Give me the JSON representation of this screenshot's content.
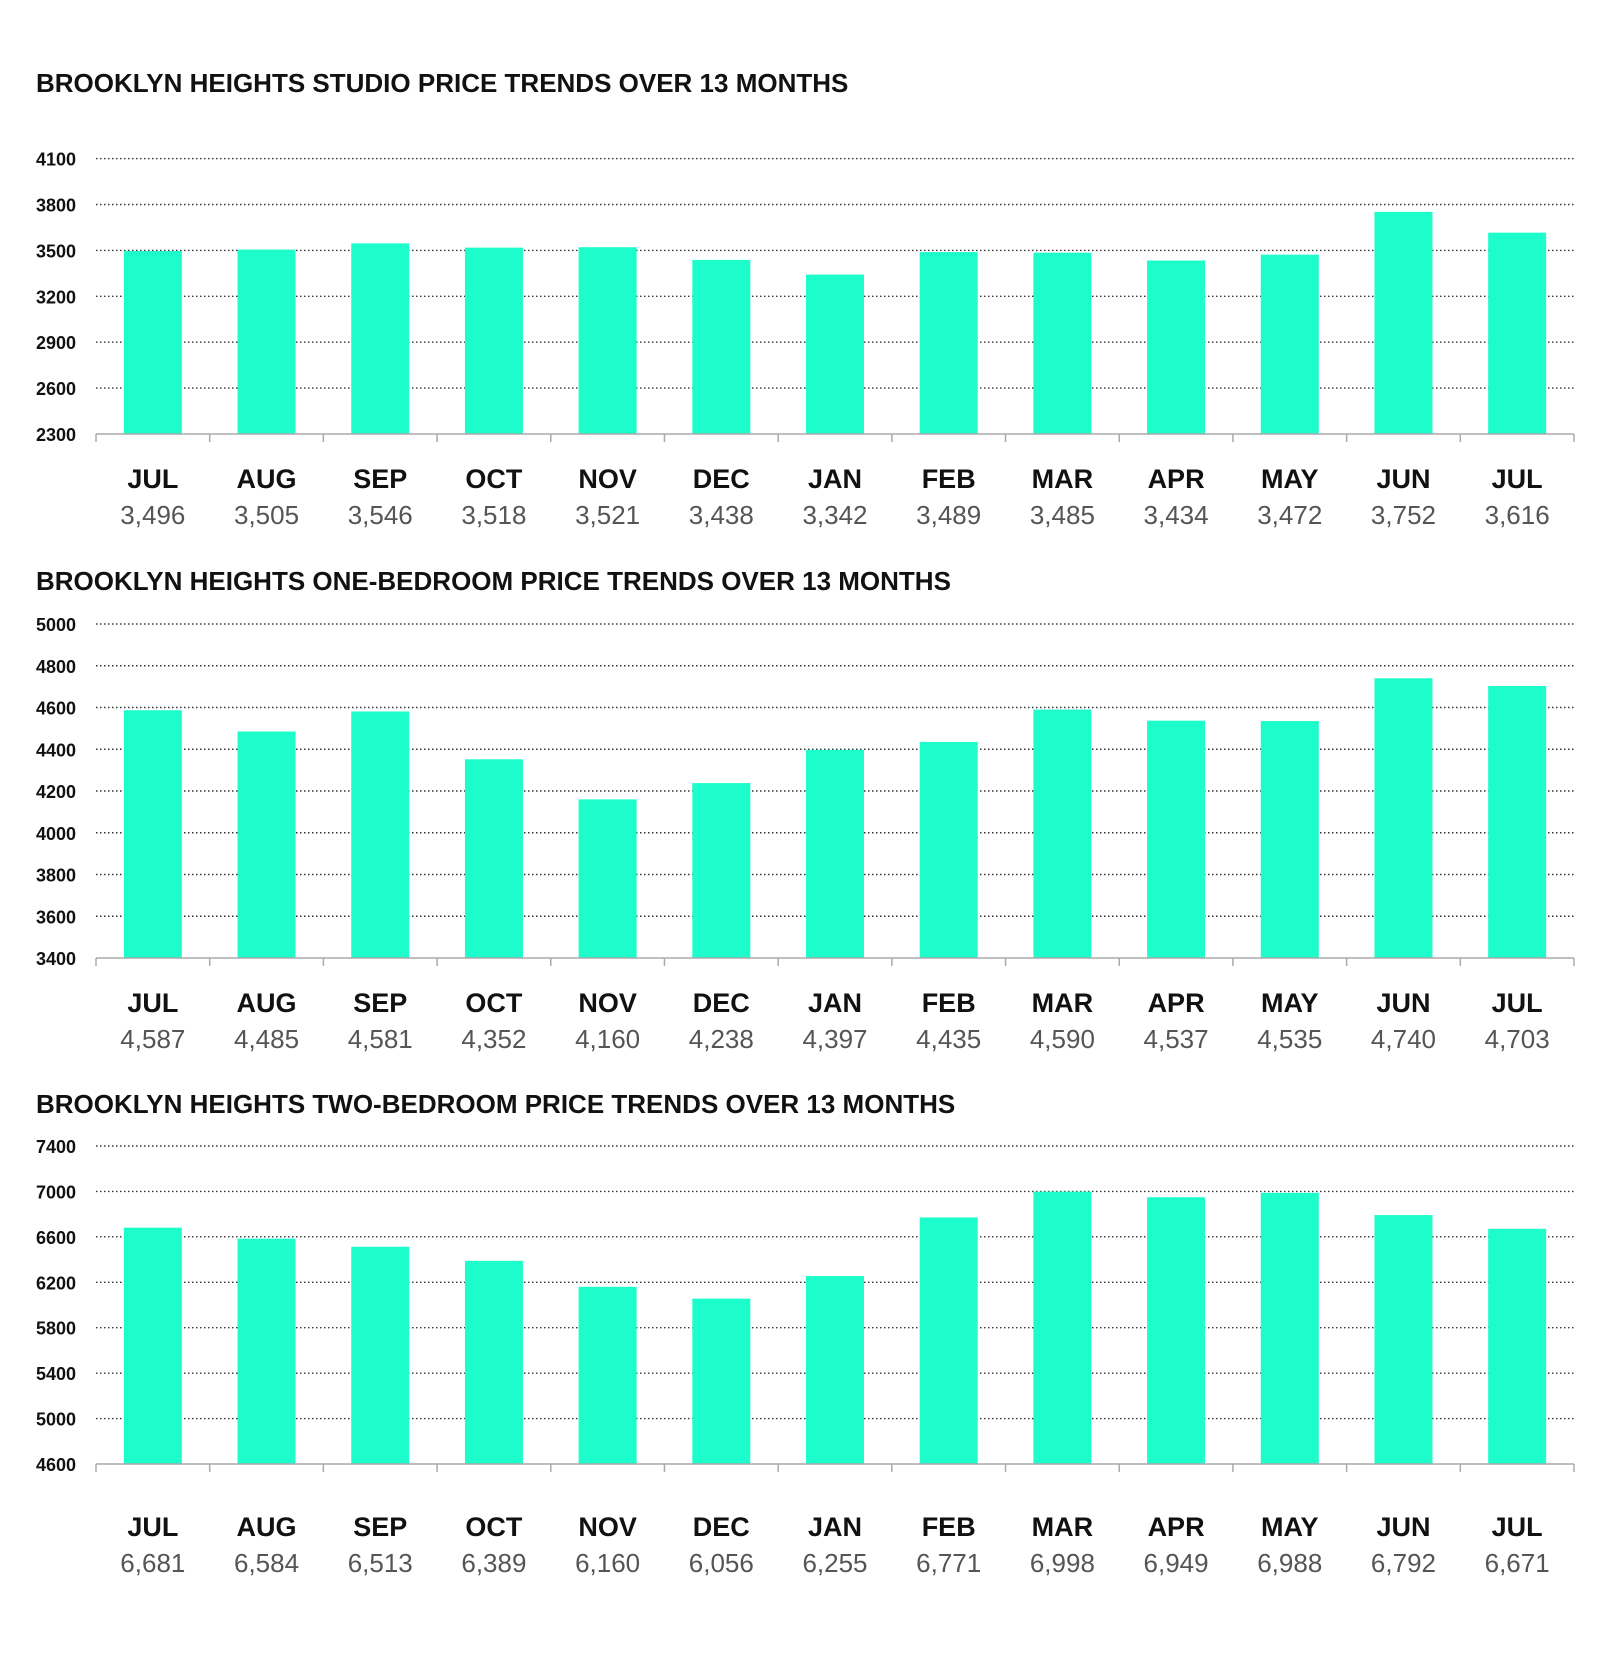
{
  "chart_data": [
    {
      "type": "bar",
      "title": "BROOKLYN HEIGHTS STUDIO PRICE TRENDS OVER 13 MONTHS",
      "categories": [
        "JUL",
        "AUG",
        "SEP",
        "OCT",
        "NOV",
        "DEC",
        "JAN",
        "FEB",
        "MAR",
        "APR",
        "MAY",
        "JUN",
        "JUL"
      ],
      "values": [
        3496,
        3505,
        3546,
        3518,
        3521,
        3438,
        3342,
        3489,
        3485,
        3434,
        3472,
        3752,
        3616
      ],
      "value_labels": [
        "3,496",
        "3,505",
        "3,546",
        "3,518",
        "3,521",
        "3,438",
        "3,342",
        "3,489",
        "3,485",
        "3,434",
        "3,472",
        "3,752",
        "3,616"
      ],
      "yticks": [
        2300,
        2600,
        2900,
        3200,
        3500,
        3800,
        4100
      ],
      "ylim": [
        2300,
        4300
      ],
      "grid": true,
      "bar_color": "#1dfdcb"
    },
    {
      "type": "bar",
      "title": "BROOKLYN HEIGHTS ONE-BEDROOM PRICE TRENDS OVER 13 MONTHS",
      "categories": [
        "JUL",
        "AUG",
        "SEP",
        "OCT",
        "NOV",
        "DEC",
        "JAN",
        "FEB",
        "MAR",
        "APR",
        "MAY",
        "JUN",
        "JUL"
      ],
      "values": [
        4587,
        4485,
        4581,
        4352,
        4160,
        4238,
        4397,
        4435,
        4590,
        4537,
        4535,
        4740,
        4703
      ],
      "value_labels": [
        "4,587",
        "4,485",
        "4,581",
        "4,352",
        "4,160",
        "4,238",
        "4,397",
        "4,435",
        "4,590",
        "4,537",
        "4,535",
        "4,740",
        "4,703"
      ],
      "yticks": [
        3400,
        3600,
        3800,
        4000,
        4200,
        4400,
        4600,
        4800,
        5000
      ],
      "ylim": [
        3400,
        5000
      ],
      "grid": true,
      "bar_color": "#1dfdcb"
    },
    {
      "type": "bar",
      "title": "BROOKLYN HEIGHTS TWO-BEDROOM PRICE TRENDS OVER 13 MONTHS",
      "categories": [
        "JUL",
        "AUG",
        "SEP",
        "OCT",
        "NOV",
        "DEC",
        "JAN",
        "FEB",
        "MAR",
        "APR",
        "MAY",
        "JUN",
        "JUL"
      ],
      "values": [
        6681,
        6584,
        6513,
        6389,
        6160,
        6056,
        6255,
        6771,
        6998,
        6949,
        6988,
        6792,
        6671
      ],
      "value_labels": [
        "6,681",
        "6,584",
        "6,513",
        "6,389",
        "6,160",
        "6,056",
        "6,255",
        "6,771",
        "6,998",
        "6,949",
        "6,988",
        "6,792",
        "6,671"
      ],
      "yticks": [
        4600,
        5000,
        5400,
        5800,
        6200,
        6600,
        7000,
        7400
      ],
      "ylim": [
        4600,
        7400
      ],
      "grid": true,
      "bar_color": "#1dfdcb"
    }
  ]
}
